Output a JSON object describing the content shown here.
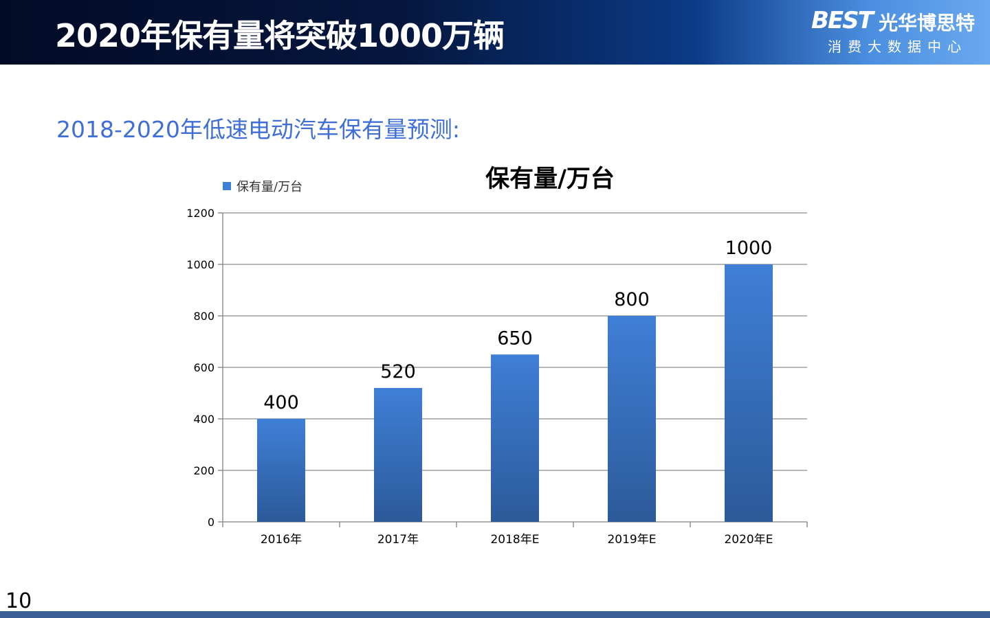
{
  "header": {
    "title": "2020年保有量将突破1000万辆",
    "logo_mark": "BEST",
    "logo_cn": "光华博思特",
    "logo_sub": "消费大数据中心"
  },
  "subtitle": "2018-2020年低速电动汽车保有量预测:",
  "page_number": "10",
  "colors": {
    "bar_top": "#3f7fd6",
    "bar_bottom": "#2c5a9a",
    "subtitle": "#3f6fd6",
    "footer_bar": "#3a5f95"
  },
  "chart_data": {
    "type": "bar",
    "title": "保有量/万台",
    "categories": [
      "2016年",
      "2017年",
      "2018年E",
      "2019年E",
      "2020年E"
    ],
    "series": [
      {
        "name": "保有量/万台",
        "values": [
          400,
          520,
          650,
          800,
          1000
        ]
      }
    ],
    "data_labels": [
      "400",
      "520",
      "650",
      "800",
      "1000"
    ],
    "ylim": [
      0,
      1200
    ],
    "yticks": [
      0,
      200,
      400,
      600,
      800,
      1000,
      1200
    ],
    "grid": true,
    "legend_position": "top-left"
  }
}
